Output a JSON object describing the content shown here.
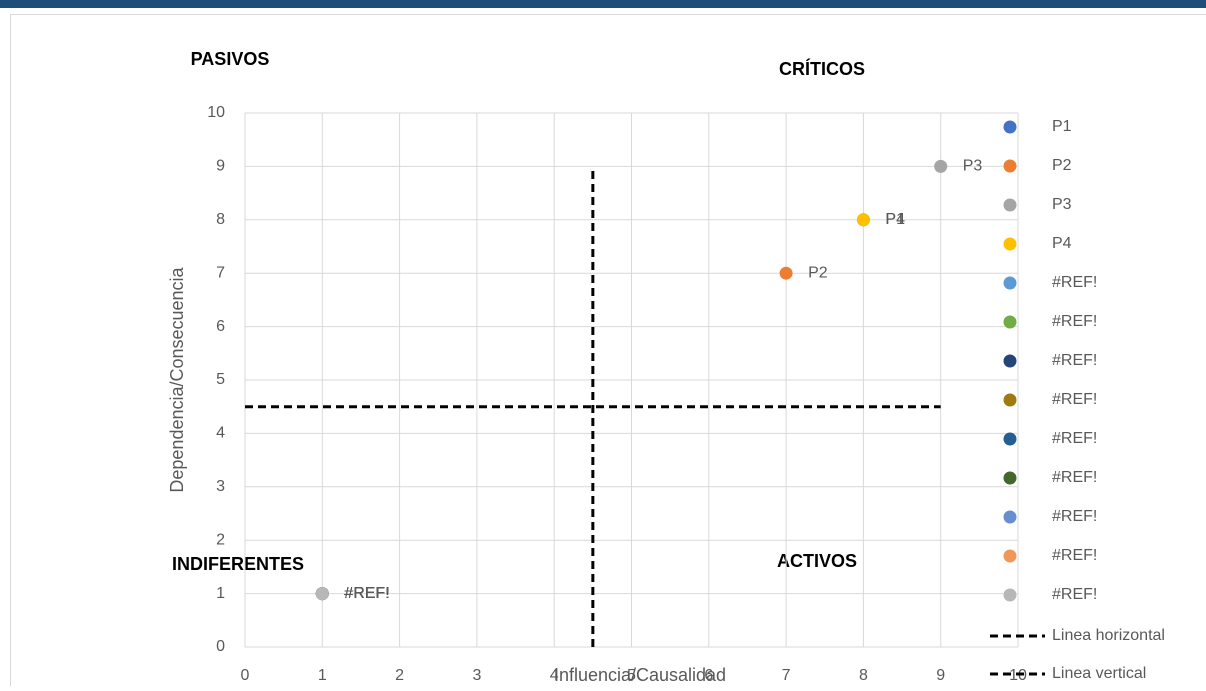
{
  "chart_data": {
    "type": "scatter",
    "x_label": "Influencia/Causalidad",
    "y_label": "Dependencia/Consecuencia",
    "annotations": [
      "PASIVOS",
      "CRÍTICOS",
      "INDIFERENTES",
      "ACTIVOS"
    ],
    "xlim": [
      0,
      10
    ],
    "xticks": [
      0,
      1,
      2,
      3,
      4,
      5,
      6,
      7,
      8,
      9,
      10
    ],
    "ylim": [
      0,
      10
    ],
    "yticks": [
      0,
      1,
      2,
      3,
      4,
      5,
      6,
      7,
      8,
      9,
      10
    ],
    "grid": true,
    "legend": "right",
    "series": [
      {
        "name": "P1",
        "color": "#4472c4",
        "x": [
          8
        ],
        "values": [
          8
        ]
      },
      {
        "name": "P2",
        "color": "#ed7d31",
        "x": [
          7
        ],
        "values": [
          7
        ]
      },
      {
        "name": "P3",
        "color": "#a5a5a5",
        "x": [
          9
        ],
        "values": [
          9
        ]
      },
      {
        "name": "P4",
        "color": "#ffc000",
        "x": [
          8
        ],
        "values": [
          8
        ]
      },
      {
        "name": "#REF!",
        "color": "#5b9bd5",
        "x": [
          1
        ],
        "values": [
          1
        ]
      },
      {
        "name": "#REF!",
        "color": "#70ad47",
        "x": [
          1
        ],
        "values": [
          1
        ]
      },
      {
        "name": "#REF!",
        "color": "#264478",
        "x": [
          1
        ],
        "values": [
          1
        ]
      },
      {
        "name": "#REF!",
        "color": "#9e7a10",
        "x": [
          1
        ],
        "values": [
          1
        ]
      },
      {
        "name": "#REF!",
        "color": "#255e91",
        "x": [
          1
        ],
        "values": [
          1
        ]
      },
      {
        "name": "#REF!",
        "color": "#43682b",
        "x": [
          1
        ],
        "values": [
          1
        ]
      },
      {
        "name": "#REF!",
        "color": "#698ed0",
        "x": [
          1
        ],
        "values": [
          1
        ]
      },
      {
        "name": "#REF!",
        "color": "#f1975a",
        "x": [
          1
        ],
        "values": [
          1
        ]
      },
      {
        "name": "#REF!",
        "color": "#b7b7b7",
        "x": [
          1
        ],
        "values": [
          1
        ]
      },
      {
        "name": "Linea horizontal",
        "color": "#000000",
        "line_style": "dashed",
        "x": [
          0,
          9
        ],
        "values": [
          4.5,
          4.5
        ]
      },
      {
        "name": "Linea vertical",
        "color": "#000000",
        "line_style": "dashed",
        "x": [
          4.5,
          4.5
        ],
        "values": [
          0,
          9
        ]
      }
    ]
  }
}
